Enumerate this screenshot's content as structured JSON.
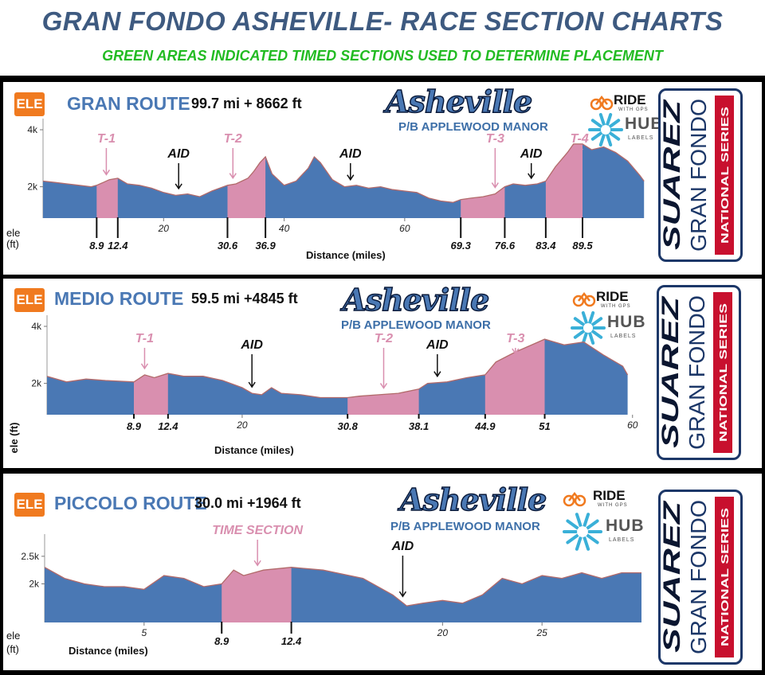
{
  "header": {
    "title": "GRAN FONDO ASHEVILLE- RACE SECTION CHARTS",
    "subtitle": "GREEN AREAS INDICATED TIMED SECTIONS USED TO DETERMINE PLACEMENT"
  },
  "branding": {
    "ele_badge": "ELE",
    "logo": "Asheville",
    "presented_by": "P/B APPLEWOOD MANOR",
    "ride_with_gps": "RIDE",
    "ride_with_gps_sub": "WITH GPS",
    "hub": "HUB",
    "hub_sub": "LABELS",
    "series_line1": "SUAREZ",
    "series_line2": "GRAN FONDO",
    "series_line3": "NATIONAL SERIES",
    "colors": {
      "profile": "#4a78b4",
      "timed": "#d98faf",
      "outline": "#b26a6a",
      "title": "#3e5a80",
      "subtitle": "#22bb22",
      "badge": "#f07a1f",
      "series_red": "#c8102e",
      "series_navy": "#1c3768"
    }
  },
  "chart_data": [
    {
      "type": "area",
      "route_name": "GRAN ROUTE",
      "stats": "99.7 mi + 8662 ft",
      "ylabel": "ele (ft)",
      "xlabel": "Distance (miles)",
      "xlim": [
        0,
        101
      ],
      "ylim": [
        900,
        4000
      ],
      "yticks": [
        {
          "value": 2000,
          "label": "2k"
        },
        {
          "value": 4000,
          "label": "4k"
        }
      ],
      "xticks": [
        {
          "value": 20,
          "label": "20"
        },
        {
          "value": 40,
          "label": "40"
        },
        {
          "value": 60,
          "label": "60"
        }
      ],
      "profile": [
        [
          0,
          2200
        ],
        [
          2,
          2150
        ],
        [
          4,
          2100
        ],
        [
          6,
          2050
        ],
        [
          8,
          2000
        ],
        [
          8.9,
          2050
        ],
        [
          10,
          2150
        ],
        [
          11,
          2250
        ],
        [
          12.4,
          2300
        ],
        [
          14,
          2100
        ],
        [
          16,
          2050
        ],
        [
          18,
          1950
        ],
        [
          20,
          1800
        ],
        [
          22,
          1700
        ],
        [
          24,
          1750
        ],
        [
          26,
          1650
        ],
        [
          28,
          1850
        ],
        [
          30.6,
          2050
        ],
        [
          32,
          2100
        ],
        [
          34,
          2300
        ],
        [
          35,
          2550
        ],
        [
          36,
          2850
        ],
        [
          36.9,
          3050
        ],
        [
          38,
          2450
        ],
        [
          40,
          2050
        ],
        [
          42,
          2200
        ],
        [
          44,
          2650
        ],
        [
          45,
          3050
        ],
        [
          46,
          2850
        ],
        [
          48,
          2250
        ],
        [
          50,
          2000
        ],
        [
          52,
          2050
        ],
        [
          54,
          1950
        ],
        [
          56,
          2000
        ],
        [
          58,
          1900
        ],
        [
          60,
          1850
        ],
        [
          62,
          1800
        ],
        [
          64,
          1600
        ],
        [
          66,
          1500
        ],
        [
          68,
          1450
        ],
        [
          69.3,
          1550
        ],
        [
          71,
          1600
        ],
        [
          73,
          1650
        ],
        [
          75,
          1750
        ],
        [
          76.6,
          2000
        ],
        [
          78,
          2100
        ],
        [
          80,
          2050
        ],
        [
          82,
          2100
        ],
        [
          83.4,
          2200
        ],
        [
          85,
          2700
        ],
        [
          87,
          3200
        ],
        [
          88,
          3500
        ],
        [
          89.5,
          3500
        ],
        [
          91,
          3300
        ],
        [
          93,
          3400
        ],
        [
          95,
          3200
        ],
        [
          97,
          2900
        ],
        [
          99,
          2400
        ],
        [
          99.7,
          2200
        ]
      ],
      "timed": [
        [
          8.9,
          12.4
        ],
        [
          30.6,
          36.9
        ],
        [
          69.3,
          76.6
        ],
        [
          83.4,
          89.5
        ]
      ],
      "markers": [
        {
          "label": "8.9",
          "x": 8.9
        },
        {
          "label": "12.4",
          "x": 12.4
        },
        {
          "label": "30.6",
          "x": 30.6
        },
        {
          "label": "36.9",
          "x": 36.9
        },
        {
          "label": "69.3",
          "x": 69.3
        },
        {
          "label": "76.6",
          "x": 76.6
        },
        {
          "label": "83.4",
          "x": 83.4
        },
        {
          "label": "89.5",
          "x": 89.5
        }
      ],
      "annotations": [
        {
          "label": "T-1",
          "x": 10.5,
          "kind": "timed"
        },
        {
          "label": "AID",
          "x": 22.5,
          "kind": "aid"
        },
        {
          "label": "T-2",
          "x": 31.5,
          "kind": "timed"
        },
        {
          "label": "AID",
          "x": 51,
          "kind": "aid"
        },
        {
          "label": "T-3",
          "x": 75,
          "kind": "timed"
        },
        {
          "label": "AID",
          "x": 81,
          "kind": "aid"
        },
        {
          "label": "T-4",
          "x": 89,
          "kind": "timed"
        }
      ]
    },
    {
      "type": "area",
      "route_name": "MEDIO ROUTE",
      "stats": "59.5 mi +4845 ft",
      "ylabel": "ele (ft)",
      "xlabel": "Distance (miles)",
      "xlim": [
        0,
        61
      ],
      "ylim": [
        900,
        4000
      ],
      "yticks": [
        {
          "value": 2000,
          "label": "2k"
        },
        {
          "value": 4000,
          "label": "4k"
        }
      ],
      "xticks": [
        {
          "value": 20,
          "label": "20"
        },
        {
          "value": 60,
          "label": "60"
        }
      ],
      "profile": [
        [
          0,
          2250
        ],
        [
          2,
          2050
        ],
        [
          4,
          2150
        ],
        [
          6,
          2100
        ],
        [
          8.9,
          2050
        ],
        [
          10,
          2300
        ],
        [
          11,
          2200
        ],
        [
          12.4,
          2350
        ],
        [
          14,
          2250
        ],
        [
          16,
          2250
        ],
        [
          18,
          2100
        ],
        [
          20,
          1850
        ],
        [
          21,
          1650
        ],
        [
          22,
          1600
        ],
        [
          23,
          1850
        ],
        [
          24,
          1650
        ],
        [
          26,
          1600
        ],
        [
          28,
          1500
        ],
        [
          30.8,
          1500
        ],
        [
          32,
          1550
        ],
        [
          34,
          1600
        ],
        [
          36,
          1650
        ],
        [
          38.1,
          1800
        ],
        [
          39,
          2000
        ],
        [
          41,
          2050
        ],
        [
          43,
          2200
        ],
        [
          44.9,
          2300
        ],
        [
          46,
          2750
        ],
        [
          48,
          3100
        ],
        [
          50,
          3400
        ],
        [
          51,
          3550
        ],
        [
          53,
          3350
        ],
        [
          55,
          3450
        ],
        [
          57,
          3000
        ],
        [
          59,
          2600
        ],
        [
          59.5,
          2300
        ]
      ],
      "timed": [
        [
          8.9,
          12.4
        ],
        [
          30.8,
          38.1
        ],
        [
          44.9,
          51
        ]
      ],
      "markers": [
        {
          "label": "8.9",
          "x": 8.9
        },
        {
          "label": "12.4",
          "x": 12.4
        },
        {
          "label": "30.8",
          "x": 30.8
        },
        {
          "label": "38.1",
          "x": 38.1
        },
        {
          "label": "44.9",
          "x": 44.9
        },
        {
          "label": "51",
          "x": 51
        }
      ],
      "annotations": [
        {
          "label": "T-1",
          "x": 10,
          "kind": "timed"
        },
        {
          "label": "AID",
          "x": 21,
          "kind": "aid"
        },
        {
          "label": "T-2",
          "x": 34.5,
          "kind": "timed"
        },
        {
          "label": "AID",
          "x": 40,
          "kind": "aid"
        },
        {
          "label": "T-3",
          "x": 48,
          "kind": "timed"
        }
      ]
    },
    {
      "type": "area",
      "route_name": "PICCOLO ROUTE",
      "stats": "30.0 mi +1964 ft",
      "ylabel": "ele (ft)",
      "xlabel": "Distance (miles)",
      "xlim": [
        0,
        30.2
      ],
      "ylim": [
        1300,
        2700
      ],
      "yticks": [
        {
          "value": 2000,
          "label": "2k"
        },
        {
          "value": 2500,
          "label": "2.5k"
        }
      ],
      "xticks": [
        {
          "value": 5,
          "label": "5"
        },
        {
          "value": 20,
          "label": "20"
        },
        {
          "value": 25,
          "label": "25"
        }
      ],
      "profile": [
        [
          0,
          2300
        ],
        [
          1,
          2100
        ],
        [
          2,
          2000
        ],
        [
          3,
          1950
        ],
        [
          4,
          1950
        ],
        [
          5,
          1900
        ],
        [
          6,
          2150
        ],
        [
          7,
          2100
        ],
        [
          8,
          1950
        ],
        [
          8.9,
          2000
        ],
        [
          9.5,
          2250
        ],
        [
          10,
          2150
        ],
        [
          11,
          2250
        ],
        [
          12.4,
          2300
        ],
        [
          14,
          2250
        ],
        [
          16,
          2100
        ],
        [
          17.5,
          1800
        ],
        [
          18.2,
          1600
        ],
        [
          19,
          1650
        ],
        [
          20,
          1700
        ],
        [
          21,
          1650
        ],
        [
          22,
          1800
        ],
        [
          23,
          2100
        ],
        [
          24,
          2000
        ],
        [
          25,
          2150
        ],
        [
          26,
          2100
        ],
        [
          27,
          2200
        ],
        [
          28,
          2100
        ],
        [
          29,
          2200
        ],
        [
          30,
          2200
        ]
      ],
      "timed": [
        [
          8.9,
          12.4
        ]
      ],
      "markers": [
        {
          "label": "8.9",
          "x": 8.9
        },
        {
          "label": "12.4",
          "x": 12.4
        }
      ],
      "annotations": [
        {
          "label": "TIME SECTION",
          "x": 10.7,
          "kind": "timed"
        },
        {
          "label": "AID",
          "x": 18,
          "kind": "aid"
        }
      ]
    }
  ]
}
